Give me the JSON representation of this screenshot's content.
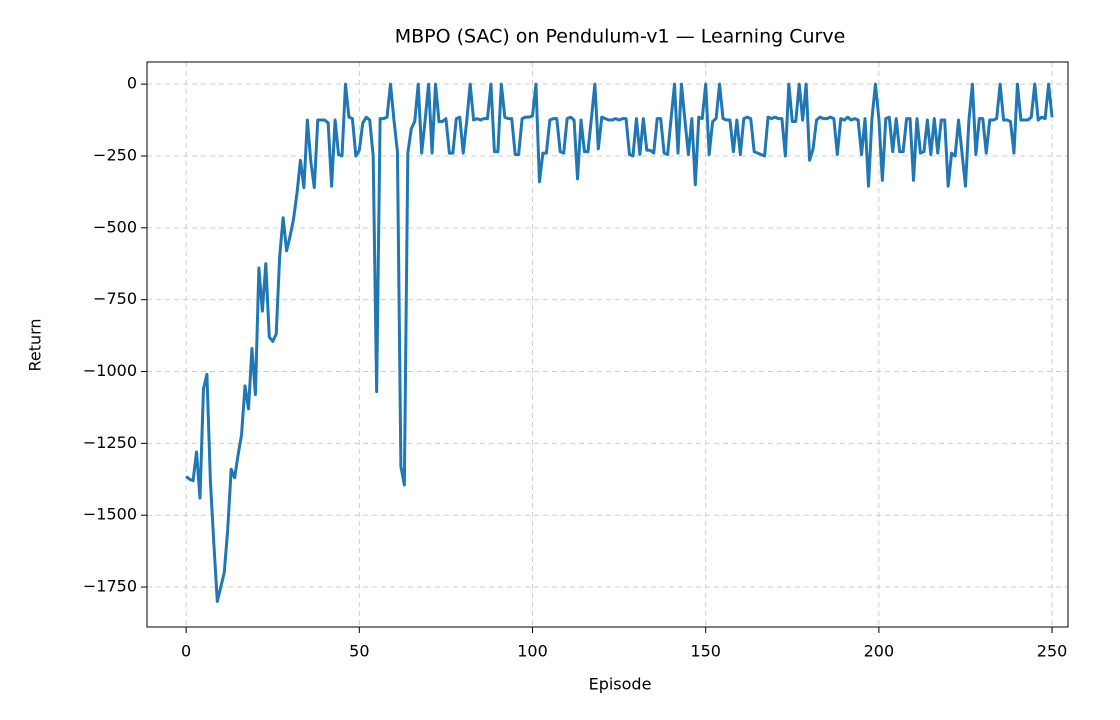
{
  "chart_data": {
    "type": "line",
    "title": "MBPO (SAC) on Pendulum-v1 — Learning Curve",
    "xlabel": "Episode",
    "ylabel": "Return",
    "grid": true,
    "xlim": [
      -11.3,
      254.6
    ],
    "ylim": [
      -1889,
      77
    ],
    "xticks": [
      0,
      50,
      100,
      150,
      200,
      250
    ],
    "yticks": [
      0,
      {
        "value": -250,
        "label": "−250"
      },
      {
        "value": -500,
        "label": "−500"
      },
      {
        "value": -750,
        "label": "−750"
      },
      {
        "value": -1000,
        "label": "−1000"
      },
      {
        "value": -1250,
        "label": "−1250"
      },
      {
        "value": -1500,
        "label": "−1500"
      },
      {
        "value": -1750,
        "label": "−1750"
      }
    ],
    "series": [
      {
        "color": "#1f77b4",
        "x": [
          0,
          1,
          2,
          3,
          4,
          5,
          6,
          7,
          8,
          9,
          10,
          11,
          12,
          13,
          14,
          15,
          16,
          17,
          18,
          19,
          20,
          21,
          22,
          23,
          24,
          25,
          26,
          27,
          28,
          29,
          30,
          31,
          32,
          33,
          34,
          35,
          36,
          37,
          38,
          39,
          40,
          41,
          42,
          43,
          44,
          45,
          46,
          47,
          48,
          49,
          50,
          51,
          52,
          53,
          54,
          55,
          56,
          57,
          58,
          59,
          60,
          61,
          62,
          63,
          64,
          65,
          66,
          67,
          68,
          69,
          70,
          71,
          72,
          73,
          74,
          75,
          76,
          77,
          78,
          79,
          80,
          81,
          82,
          83,
          84,
          85,
          86,
          87,
          88,
          89,
          90,
          91,
          92,
          93,
          94,
          95,
          96,
          97,
          98,
          99,
          100,
          101,
          102,
          103,
          104,
          105,
          106,
          107,
          108,
          109,
          110,
          111,
          112,
          113,
          114,
          115,
          116,
          117,
          118,
          119,
          120,
          121,
          122,
          123,
          124,
          125,
          126,
          127,
          128,
          129,
          130,
          131,
          132,
          133,
          134,
          135,
          136,
          137,
          138,
          139,
          140,
          141,
          142,
          143,
          144,
          145,
          146,
          147,
          148,
          149,
          150,
          151,
          152,
          153,
          154,
          155,
          156,
          157,
          158,
          159,
          160,
          161,
          162,
          163,
          164,
          165,
          166,
          167,
          168,
          169,
          170,
          171,
          172,
          173,
          174,
          175,
          176,
          177,
          178,
          179,
          180,
          181,
          182,
          183,
          184,
          185,
          186,
          187,
          188,
          189,
          190,
          191,
          192,
          193,
          194,
          195,
          196,
          197,
          198,
          199,
          200,
          201,
          202,
          203,
          204,
          205,
          206,
          207,
          208,
          209,
          210,
          211,
          212,
          213,
          214,
          215,
          216,
          217,
          218,
          219,
          220,
          221,
          222,
          223,
          224,
          225,
          226,
          227,
          228,
          229,
          230,
          231,
          232,
          233,
          234,
          235,
          236,
          237,
          238,
          239,
          240,
          241,
          242,
          243,
          244,
          245,
          246,
          247,
          248,
          249,
          250
        ],
        "values": [
          -1365,
          -1375,
          -1380,
          -1280,
          -1440,
          -1060,
          -1010,
          -1380,
          -1600,
          -1800,
          -1750,
          -1700,
          -1550,
          -1340,
          -1370,
          -1290,
          -1220,
          -1050,
          -1130,
          -920,
          -1080,
          -640,
          -790,
          -625,
          -880,
          -895,
          -870,
          -600,
          -465,
          -580,
          -530,
          -470,
          -380,
          -265,
          -360,
          -125,
          -270,
          -360,
          -125,
          -125,
          -125,
          -135,
          -355,
          -125,
          -245,
          -250,
          0,
          -115,
          -120,
          -250,
          -230,
          -135,
          -115,
          -125,
          -250,
          -1070,
          -120,
          -120,
          -115,
          0,
          -125,
          -235,
          -1330,
          -1395,
          -240,
          -155,
          -130,
          0,
          -240,
          -125,
          0,
          -240,
          0,
          -130,
          -130,
          -120,
          -240,
          -240,
          -120,
          -115,
          -240,
          -130,
          0,
          -125,
          -120,
          -125,
          -120,
          -120,
          0,
          -235,
          -235,
          0,
          -115,
          -120,
          -120,
          -245,
          -245,
          -120,
          -115,
          -115,
          -110,
          0,
          -340,
          -240,
          -240,
          -125,
          -120,
          -120,
          -235,
          -240,
          -120,
          -115,
          -125,
          -330,
          -125,
          -235,
          -235,
          -120,
          0,
          -225,
          -115,
          -120,
          -125,
          -125,
          -120,
          -125,
          -120,
          -120,
          -245,
          -250,
          -120,
          -245,
          -120,
          -230,
          -230,
          -240,
          -120,
          -120,
          -240,
          -245,
          -120,
          0,
          -240,
          0,
          -125,
          -245,
          -120,
          -350,
          -115,
          -120,
          0,
          -245,
          -130,
          -120,
          0,
          -120,
          -125,
          -125,
          -235,
          -125,
          -245,
          -120,
          -115,
          -120,
          -235,
          -240,
          -245,
          -250,
          -115,
          -120,
          -115,
          -120,
          -120,
          -250,
          0,
          -130,
          -130,
          0,
          -125,
          0,
          -265,
          -225,
          -125,
          -115,
          -120,
          -120,
          -115,
          -120,
          -245,
          -120,
          -125,
          -115,
          -125,
          -120,
          -125,
          -245,
          -120,
          -355,
          -120,
          0,
          -120,
          -335,
          -120,
          -115,
          -235,
          -120,
          -235,
          -235,
          -120,
          -120,
          -335,
          -120,
          -240,
          -235,
          -125,
          -245,
          -120,
          -240,
          -125,
          -125,
          -355,
          -240,
          -250,
          -125,
          -240,
          -355,
          -125,
          0,
          -245,
          -120,
          -120,
          -240,
          -125,
          -125,
          -120,
          0,
          -125,
          -125,
          -130,
          -240,
          0,
          -125,
          -125,
          -125,
          -115,
          0,
          -125,
          -115,
          -120,
          0,
          -115
        ]
      }
    ]
  }
}
